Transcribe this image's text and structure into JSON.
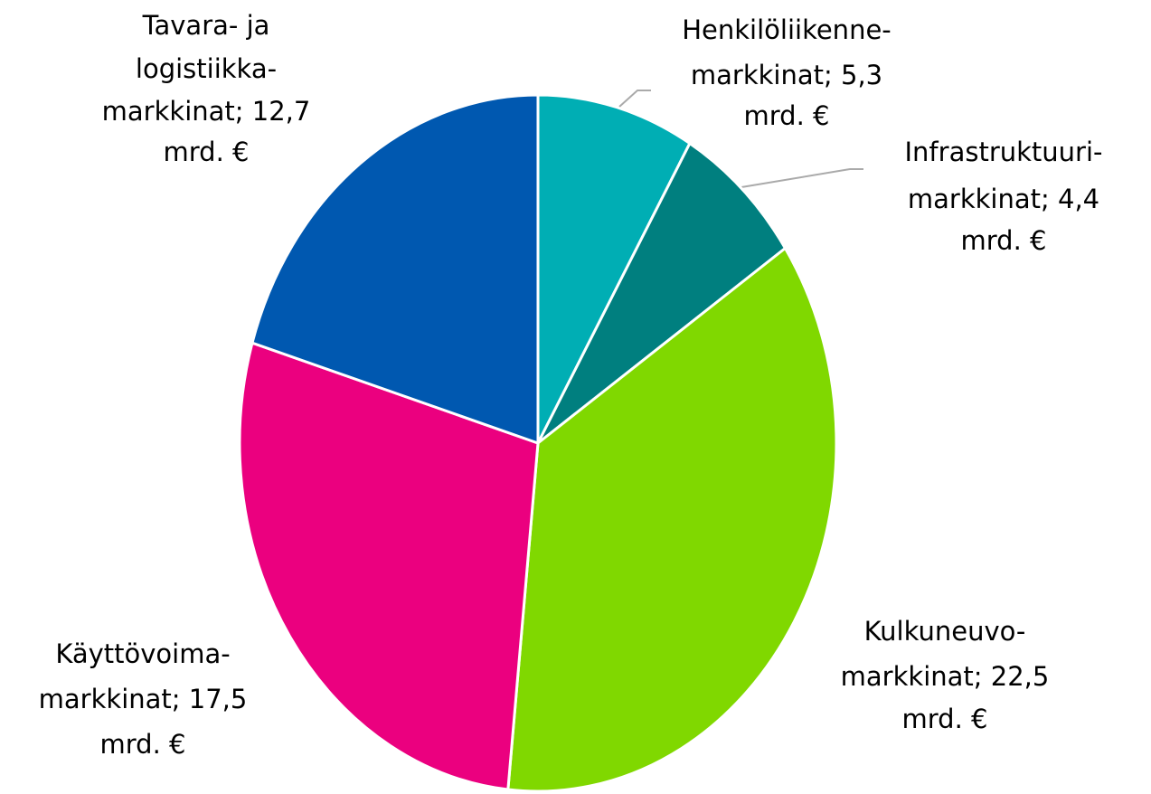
{
  "chart_data": {
    "type": "pie",
    "values": [
      5.3,
      4.4,
      22.5,
      17.5,
      12.7
    ],
    "value_labels": [
      [
        "Henkilöliikenne-",
        "markkinat; 5,3",
        "mrd. €"
      ],
      [
        "Infrastruktuuri-",
        "markkinat; 4,4",
        "mrd. €"
      ],
      [
        "Kulkuneuvo-",
        "markkinat; 22,5",
        "mrd. €"
      ],
      [
        "Käyttövoima-",
        "markkinat; 17,5",
        "mrd. €"
      ],
      [
        "Tavara- ja",
        "logistiikka-",
        "markkinat; 12,7",
        "mrd. €"
      ]
    ],
    "colors": [
      "#00aeb4",
      "#007f7f",
      "#80d800",
      "#eb007f",
      "#0058b0"
    ]
  }
}
